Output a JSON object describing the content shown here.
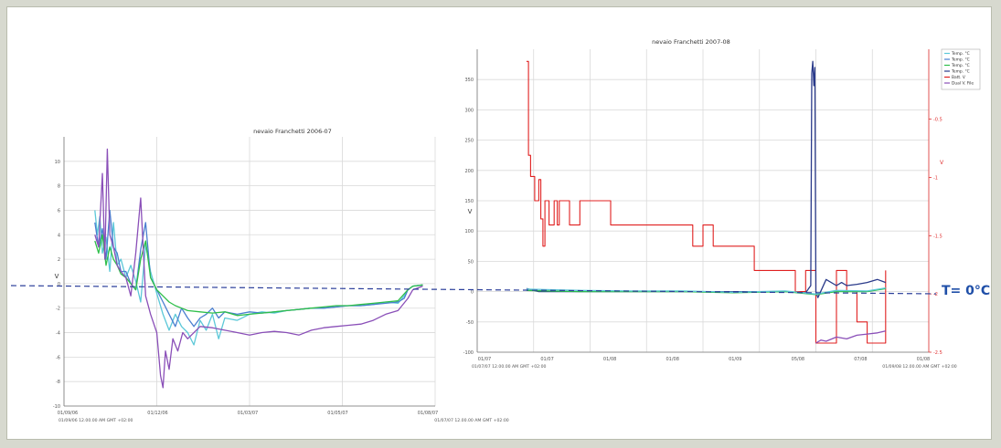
{
  "colors": {
    "frame_background": "#d7d9cf",
    "panel_background": "#ffffff",
    "grid": "#d9d9d9",
    "zero_line": "#2b3f9a",
    "annotation": "#1f4fa8",
    "temp_cyan": "#5cc8d8",
    "temp_blue": "#4a7fd0",
    "temp_green": "#2fbf4a",
    "temp_purple": "#8a4fb8",
    "temp_navy": "#2a3a8a",
    "batt_red": "#e02020",
    "right_axis_red": "#e03030"
  },
  "annotation": {
    "text": "T= 0°C"
  },
  "chart_data": [
    {
      "type": "line",
      "title": "nevaio Franchetti 2006-07",
      "ylabel": "V",
      "ylim": [
        -10,
        12
      ],
      "y_ticks": [
        -10,
        -8,
        -6,
        -4,
        -2,
        0,
        2,
        4,
        6,
        8,
        10
      ],
      "x_tick_labels": [
        "01/09/06",
        "01/12/06",
        "01/03/07",
        "01/05/07",
        "01/08/07"
      ],
      "x_start_label": "01/09/06 12.00.00 AM GMT +02:00",
      "x_end_label": "01/07/07 12.00.00 AM GMT +02:00",
      "xlim": [
        0,
        300
      ],
      "grid": true,
      "zero_reference_line": true,
      "series": [
        {
          "color": "#5cc8d8",
          "x": [
            25,
            27,
            29,
            31,
            34,
            37,
            40,
            43,
            46,
            50,
            54,
            58,
            62,
            66,
            70,
            75,
            80,
            85,
            90,
            95,
            100,
            105,
            110,
            115,
            120,
            125,
            130,
            140,
            150,
            160,
            170,
            180,
            190,
            200,
            210,
            220,
            230,
            240,
            250,
            260,
            270,
            275,
            278,
            282,
            290
          ],
          "values": [
            6.0,
            4.0,
            5.5,
            2.5,
            3.8,
            1.0,
            5.0,
            1.5,
            2.0,
            0.5,
            1.5,
            0.2,
            -1.5,
            3.2,
            1.0,
            -0.8,
            -2.5,
            -3.8,
            -2.5,
            -3.5,
            -4.0,
            -5.0,
            -3.0,
            -3.8,
            -2.5,
            -4.5,
            -2.8,
            -3.0,
            -2.5,
            -2.3,
            -2.4,
            -2.2,
            -2.1,
            -2.0,
            -2.0,
            -1.9,
            -1.8,
            -1.8,
            -1.7,
            -1.5,
            -1.6,
            -1.0,
            -0.5,
            -0.2,
            -0.1
          ]
        },
        {
          "color": "#4a7fd0",
          "x": [
            25,
            28,
            31,
            34,
            37,
            40,
            43,
            46,
            50,
            54,
            58,
            62,
            66,
            70,
            75,
            80,
            85,
            90,
            95,
            100,
            105,
            110,
            115,
            120,
            125,
            130,
            140,
            150,
            160,
            170,
            180,
            190,
            200,
            210,
            220,
            230,
            240,
            250,
            260,
            270,
            275,
            278,
            282,
            290
          ],
          "values": [
            5.0,
            3.0,
            4.5,
            2.0,
            6.0,
            3.0,
            2.5,
            1.0,
            1.0,
            0.0,
            -0.5,
            2.8,
            5.0,
            0.5,
            -0.5,
            -1.5,
            -2.5,
            -3.5,
            -2.0,
            -2.8,
            -3.5,
            -2.8,
            -2.5,
            -2.0,
            -2.8,
            -2.3,
            -2.5,
            -2.3,
            -2.4,
            -2.3,
            -2.2,
            -2.1,
            -2.0,
            -2.0,
            -1.9,
            -1.8,
            -1.8,
            -1.7,
            -1.6,
            -1.5,
            -1.2,
            -0.5,
            -0.2,
            -0.1
          ]
        },
        {
          "color": "#2fbf4a",
          "x": [
            25,
            28,
            31,
            34,
            37,
            40,
            43,
            46,
            50,
            54,
            58,
            62,
            66,
            70,
            75,
            80,
            85,
            90,
            95,
            100,
            110,
            120,
            130,
            140,
            150,
            160,
            170,
            180,
            190,
            200,
            210,
            220,
            230,
            240,
            250,
            260,
            270,
            278,
            282,
            290
          ],
          "values": [
            3.5,
            2.5,
            4.0,
            1.5,
            3.0,
            2.0,
            1.5,
            0.8,
            0.5,
            0.0,
            -0.5,
            2.0,
            3.5,
            0.5,
            -0.5,
            -1.0,
            -1.5,
            -1.8,
            -2.0,
            -2.2,
            -2.3,
            -2.4,
            -2.3,
            -2.6,
            -2.5,
            -2.4,
            -2.3,
            -2.2,
            -2.1,
            -2.0,
            -1.9,
            -1.8,
            -1.8,
            -1.7,
            -1.6,
            -1.5,
            -1.4,
            -0.5,
            -0.2,
            -0.1
          ]
        },
        {
          "color": "#8a4fb8",
          "x": [
            25,
            28,
            31,
            33,
            35,
            37,
            40,
            43,
            46,
            50,
            54,
            58,
            62,
            66,
            70,
            75,
            78,
            80,
            82,
            85,
            88,
            92,
            96,
            100,
            110,
            120,
            130,
            140,
            150,
            160,
            170,
            180,
            190,
            200,
            210,
            220,
            230,
            240,
            250,
            260,
            270,
            278,
            282,
            290
          ],
          "values": [
            4.0,
            3.0,
            9.0,
            2.0,
            11.0,
            4.0,
            3.0,
            1.5,
            1.0,
            0.5,
            -1.0,
            2.5,
            7.0,
            -1.0,
            -2.5,
            -4.0,
            -7.5,
            -8.5,
            -5.5,
            -7.0,
            -4.5,
            -5.5,
            -4.0,
            -4.5,
            -3.5,
            -3.6,
            -3.8,
            -4.0,
            -4.2,
            -4.0,
            -3.9,
            -4.0,
            -4.2,
            -3.8,
            -3.6,
            -3.5,
            -3.4,
            -3.3,
            -3.0,
            -2.5,
            -2.2,
            -1.2,
            -0.5,
            -0.2
          ]
        }
      ]
    },
    {
      "type": "line",
      "title": "nevaio Franchetti 2007-08",
      "ylabel": "V",
      "ylim": [
        -100,
        400
      ],
      "y_ticks": [
        -100,
        -50,
        0,
        50,
        100,
        150,
        200,
        250,
        300,
        350
      ],
      "x_tick_labels": [
        "01/07",
        "01/07",
        "01/08",
        "01/08",
        "01/09",
        "05/08",
        "07/08",
        "01/08"
      ],
      "x_start_label": "01/07/07 12.00.00 AM GMT +02:00",
      "x_end_label": "01/09/08 12.00.00 AM GMT +02:00",
      "xlim": [
        0,
        440
      ],
      "right_ylim": [
        -2.5,
        0.1
      ],
      "right_y_ticks": [
        -2.5,
        -2.0,
        -1.5,
        -1.0,
        -0.5
      ],
      "right_ylabel": "V",
      "legend": {
        "position": "top-right",
        "entries": [
          "Temp. °C",
          "Temp. °C",
          "Temp. °C",
          "Temp. °C",
          "Batt. V",
          "Dual V. File"
        ]
      },
      "grid": true,
      "zero_reference_line": true,
      "series": [
        {
          "color": "#e02020",
          "step": true,
          "x": [
            48,
            50,
            52,
            56,
            60,
            62,
            64,
            66,
            70,
            75,
            78,
            80,
            90,
            100,
            110,
            130,
            150,
            170,
            180,
            190,
            200,
            210,
            220,
            230,
            240,
            250,
            260,
            270,
            280,
            290,
            300,
            310,
            320,
            330,
            340,
            350,
            355,
            360,
            370,
            380,
            390,
            398
          ],
          "values": [
            380,
            225,
            190,
            150,
            185,
            120,
            75,
            150,
            110,
            150,
            110,
            150,
            110,
            150,
            150,
            110,
            110,
            110,
            110,
            110,
            110,
            75,
            110,
            75,
            75,
            75,
            75,
            35,
            35,
            35,
            35,
            0,
            35,
            -85,
            -85,
            35,
            35,
            0,
            -50,
            -85,
            -85,
            35
          ]
        },
        {
          "color": "#2a3a8a",
          "x": [
            48,
            60,
            80,
            100,
            150,
            200,
            250,
            300,
            320,
            325,
            326,
            327,
            328,
            329,
            330,
            332,
            340,
            350,
            355,
            360,
            370,
            380,
            390,
            398
          ],
          "values": [
            5,
            0,
            0,
            0,
            0,
            0,
            0,
            0,
            -2,
            10,
            360,
            380,
            340,
            370,
            0,
            -10,
            20,
            10,
            15,
            10,
            12,
            15,
            20,
            15
          ]
        },
        {
          "color": "#8a4fb8",
          "x": [
            330,
            335,
            340,
            350,
            360,
            370,
            380,
            390,
            398
          ],
          "values": [
            -85,
            -80,
            -82,
            -75,
            -78,
            -72,
            -70,
            -68,
            -65
          ]
        },
        {
          "color": "#2fbf4a",
          "x": [
            48,
            100,
            150,
            200,
            250,
            300,
            330,
            350,
            380,
            398
          ],
          "values": [
            2,
            0,
            0,
            0,
            -2,
            0,
            -5,
            0,
            0,
            5
          ]
        },
        {
          "color": "#5cc8d8",
          "x": [
            48,
            100,
            150,
            200,
            250,
            300,
            330,
            350,
            380,
            398
          ],
          "values": [
            4,
            2,
            1,
            1,
            -1,
            1,
            -4,
            2,
            1,
            6
          ]
        }
      ]
    }
  ]
}
